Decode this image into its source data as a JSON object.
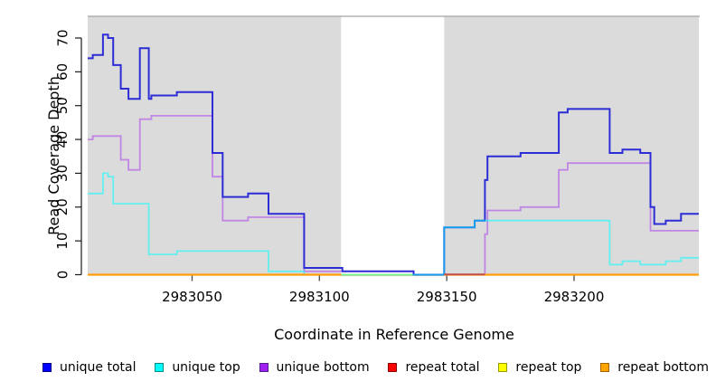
{
  "chart_data": {
    "type": "line",
    "subtype": "step-coverage",
    "title": "",
    "xlabel": "Coordinate in Reference Genome",
    "ylabel": "Read Coverage Depth",
    "xlim": [
      2983009,
      2983249
    ],
    "ylim": [
      0,
      70
    ],
    "xticks": [
      2983050,
      2983100,
      2983150,
      2983200
    ],
    "xtick_labels": [
      "2983050",
      "2983100",
      "2983150",
      "2983200"
    ],
    "yticks": [
      0,
      10,
      20,
      30,
      40,
      50,
      60,
      70
    ],
    "ytick_labels": [
      "0",
      "10",
      "20",
      "30",
      "40",
      "50",
      "60",
      "70"
    ],
    "grid": false,
    "legend_position": "bottom",
    "panel_background": "#dbdbdb",
    "gap_background": "#ffffff",
    "shaded_regions": [
      [
        2983009,
        2983108.5
      ],
      [
        2983149,
        2983249
      ]
    ],
    "gap_region": [
      2983108.5,
      2983149
    ],
    "series": [
      {
        "name": "unique total",
        "color": "#2d2dd6",
        "points": [
          [
            2983009,
            64
          ],
          [
            2983011,
            65
          ],
          [
            2983015,
            71
          ],
          [
            2983017,
            70
          ],
          [
            2983019,
            62
          ],
          [
            2983022,
            55
          ],
          [
            2983025,
            52
          ],
          [
            2983029.5,
            67
          ],
          [
            2983033,
            52
          ],
          [
            2983034,
            53
          ],
          [
            2983044,
            54
          ],
          [
            2983058,
            36
          ],
          [
            2983062,
            23
          ],
          [
            2983072,
            24
          ],
          [
            2983080,
            18
          ],
          [
            2983094,
            2
          ],
          [
            2983109,
            1
          ],
          [
            2983137,
            0
          ],
          [
            2983149,
            14
          ],
          [
            2983161,
            16
          ],
          [
            2983165,
            28
          ],
          [
            2983166,
            35
          ],
          [
            2983179,
            36
          ],
          [
            2983194,
            48
          ],
          [
            2983197.5,
            49
          ],
          [
            2983214,
            36
          ],
          [
            2983219,
            37
          ],
          [
            2983226,
            36
          ],
          [
            2983230,
            20
          ],
          [
            2983231.5,
            15
          ],
          [
            2983236,
            16
          ],
          [
            2983242,
            18
          ]
        ]
      },
      {
        "name": "unique top",
        "color": "rgba(0,255,255,0.55)",
        "points": [
          [
            2983009,
            24
          ],
          [
            2983015,
            30
          ],
          [
            2983017,
            29
          ],
          [
            2983019,
            21
          ],
          [
            2983033,
            6
          ],
          [
            2983044,
            7
          ],
          [
            2983080,
            1
          ],
          [
            2983094,
            0
          ],
          [
            2983149,
            14
          ],
          [
            2983161,
            16
          ],
          [
            2983214,
            3
          ],
          [
            2983219,
            4
          ],
          [
            2983226,
            3
          ],
          [
            2983236,
            4
          ],
          [
            2983242,
            5
          ]
        ]
      },
      {
        "name": "unique bottom",
        "color": "rgba(160,32,240,0.45)",
        "points": [
          [
            2983009,
            40
          ],
          [
            2983011,
            41
          ],
          [
            2983022,
            34
          ],
          [
            2983025,
            31
          ],
          [
            2983029.5,
            46
          ],
          [
            2983034,
            47
          ],
          [
            2983058,
            29
          ],
          [
            2983062,
            16
          ],
          [
            2983072,
            17
          ],
          [
            2983094,
            1
          ],
          [
            2983137,
            0
          ],
          [
            2983165,
            12
          ],
          [
            2983166,
            19
          ],
          [
            2983179,
            20
          ],
          [
            2983194,
            31
          ],
          [
            2983197.5,
            33
          ],
          [
            2983230,
            13
          ]
        ]
      },
      {
        "name": "repeat total",
        "color": "#ff0000",
        "points": [
          [
            2983009,
            0
          ]
        ]
      },
      {
        "name": "repeat top",
        "color": "#ffff00",
        "points": [
          [
            2983009,
            0
          ]
        ]
      },
      {
        "name": "repeat bottom",
        "color": "#ff9c0a",
        "points": [
          [
            2983009,
            0
          ]
        ],
        "visible_segments": [
          [
            2983009,
            2983108.5
          ],
          [
            2983149,
            2983249
          ]
        ]
      }
    ],
    "zero_line_artifacts": {
      "gap_pale_color": "#cde0c0",
      "gap_pale_range": [
        2983108.5,
        2983149
      ],
      "overlap_salmon_color": "#c0504d",
      "overlap_salmon_range": [
        2983149,
        2983165
      ]
    }
  },
  "legend": {
    "items": [
      {
        "label": "unique total",
        "fill": "#0000ff",
        "border": "#00008b"
      },
      {
        "label": "unique top",
        "fill": "#00ffff",
        "border": "#008b8b"
      },
      {
        "label": "unique bottom",
        "fill": "#a020f0",
        "border": "#551a8b"
      },
      {
        "label": "repeat total",
        "fill": "#ff0000",
        "border": "#8b0000"
      },
      {
        "label": "repeat top",
        "fill": "#ffff00",
        "border": "#999900"
      },
      {
        "label": "repeat bottom",
        "fill": "#ffa500",
        "border": "#a66400"
      }
    ]
  }
}
